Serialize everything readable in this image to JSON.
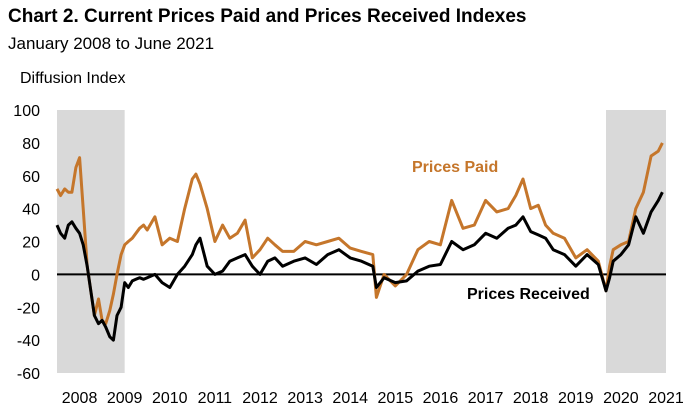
{
  "header": {
    "title": "Chart 2. Current Prices Paid and Prices Received Indexes",
    "subtitle": "January 2008 to June 2021"
  },
  "chart_data": {
    "type": "line",
    "title": "Chart 2. Current Prices Paid and Prices Received Indexes",
    "subtitle": "January 2008 to June 2021",
    "ylabel": "Diffusion Index",
    "xlabel": "",
    "ylim": [
      -60,
      100
    ],
    "yticks": [
      100,
      80,
      60,
      40,
      20,
      0,
      -20,
      -40,
      -60
    ],
    "xlim": [
      2008.0,
      2021.5
    ],
    "xtick_labels": [
      "2008",
      "2009",
      "2010",
      "2011",
      "2012",
      "2013",
      "2014",
      "2015",
      "2016",
      "2017",
      "2018",
      "2019",
      "2020",
      "2021"
    ],
    "grid": false,
    "zero_line": true,
    "shaded_periods": [
      {
        "start": 2008.0,
        "end": 2009.5,
        "color": "#d9d9d9"
      },
      {
        "start": 2020.17,
        "end": 2021.5,
        "color": "#d9d9d9"
      }
    ],
    "series": [
      {
        "name": "Prices Paid",
        "color": "#c5762b",
        "label_text": "Prices Paid",
        "x": [
          2008.0,
          2008.08,
          2008.17,
          2008.25,
          2008.33,
          2008.42,
          2008.5,
          2008.58,
          2008.67,
          2008.75,
          2008.83,
          2008.92,
          2009.0,
          2009.08,
          2009.17,
          2009.25,
          2009.33,
          2009.42,
          2009.5,
          2009.58,
          2009.67,
          2009.75,
          2009.83,
          2009.92,
          2010.0,
          2010.17,
          2010.33,
          2010.5,
          2010.67,
          2010.83,
          2011.0,
          2011.08,
          2011.17,
          2011.33,
          2011.5,
          2011.67,
          2011.83,
          2012.0,
          2012.17,
          2012.33,
          2012.5,
          2012.67,
          2012.83,
          2013.0,
          2013.25,
          2013.5,
          2013.75,
          2014.0,
          2014.25,
          2014.5,
          2014.75,
          2015.0,
          2015.08,
          2015.25,
          2015.5,
          2015.75,
          2016.0,
          2016.25,
          2016.5,
          2016.75,
          2017.0,
          2017.25,
          2017.5,
          2017.75,
          2018.0,
          2018.17,
          2018.33,
          2018.5,
          2018.67,
          2018.83,
          2019.0,
          2019.25,
          2019.5,
          2019.75,
          2020.0,
          2020.17,
          2020.25,
          2020.33,
          2020.5,
          2020.67,
          2020.83,
          2021.0,
          2021.17,
          2021.33,
          2021.42
        ],
        "y": [
          52,
          48,
          52,
          50,
          50,
          65,
          71,
          40,
          5,
          -10,
          -25,
          -15,
          -28,
          -30,
          -22,
          -12,
          0,
          12,
          18,
          20,
          22,
          25,
          28,
          30,
          27,
          35,
          18,
          22,
          20,
          40,
          58,
          61,
          55,
          40,
          20,
          30,
          22,
          25,
          33,
          10,
          15,
          22,
          18,
          14,
          14,
          20,
          18,
          20,
          22,
          16,
          14,
          12,
          -14,
          0,
          -7,
          0,
          15,
          20,
          18,
          45,
          28,
          30,
          45,
          38,
          40,
          48,
          58,
          40,
          42,
          30,
          25,
          22,
          10,
          15,
          8,
          -10,
          5,
          15,
          18,
          20,
          40,
          50,
          72,
          75,
          80
        ]
      },
      {
        "name": "Prices Received",
        "color": "#000000",
        "label_text": "Prices Received",
        "x": [
          2008.0,
          2008.08,
          2008.17,
          2008.25,
          2008.33,
          2008.42,
          2008.5,
          2008.58,
          2008.67,
          2008.75,
          2008.83,
          2008.92,
          2009.0,
          2009.08,
          2009.17,
          2009.25,
          2009.33,
          2009.42,
          2009.5,
          2009.58,
          2009.67,
          2009.75,
          2009.83,
          2009.92,
          2010.0,
          2010.17,
          2010.33,
          2010.5,
          2010.67,
          2010.83,
          2011.0,
          2011.08,
          2011.17,
          2011.33,
          2011.5,
          2011.67,
          2011.83,
          2012.0,
          2012.17,
          2012.33,
          2012.5,
          2012.67,
          2012.83,
          2013.0,
          2013.25,
          2013.5,
          2013.75,
          2014.0,
          2014.25,
          2014.5,
          2014.75,
          2015.0,
          2015.08,
          2015.25,
          2015.5,
          2015.75,
          2016.0,
          2016.25,
          2016.5,
          2016.75,
          2017.0,
          2017.25,
          2017.5,
          2017.75,
          2018.0,
          2018.17,
          2018.33,
          2018.5,
          2018.67,
          2018.83,
          2019.0,
          2019.25,
          2019.5,
          2019.75,
          2020.0,
          2020.17,
          2020.25,
          2020.33,
          2020.5,
          2020.67,
          2020.83,
          2021.0,
          2021.17,
          2021.33,
          2021.42
        ],
        "y": [
          30,
          25,
          22,
          30,
          32,
          28,
          25,
          18,
          5,
          -10,
          -25,
          -30,
          -28,
          -32,
          -38,
          -40,
          -25,
          -20,
          -5,
          -8,
          -4,
          -3,
          -2,
          -3,
          -2,
          0,
          -5,
          -8,
          0,
          5,
          12,
          18,
          22,
          5,
          0,
          2,
          8,
          10,
          12,
          5,
          0,
          8,
          10,
          5,
          8,
          10,
          6,
          12,
          15,
          10,
          8,
          5,
          -8,
          -2,
          -5,
          -4,
          2,
          5,
          6,
          20,
          15,
          18,
          25,
          22,
          28,
          30,
          35,
          26,
          24,
          22,
          15,
          12,
          5,
          12,
          6,
          -10,
          -2,
          8,
          12,
          18,
          35,
          25,
          38,
          45,
          50
        ]
      }
    ]
  }
}
